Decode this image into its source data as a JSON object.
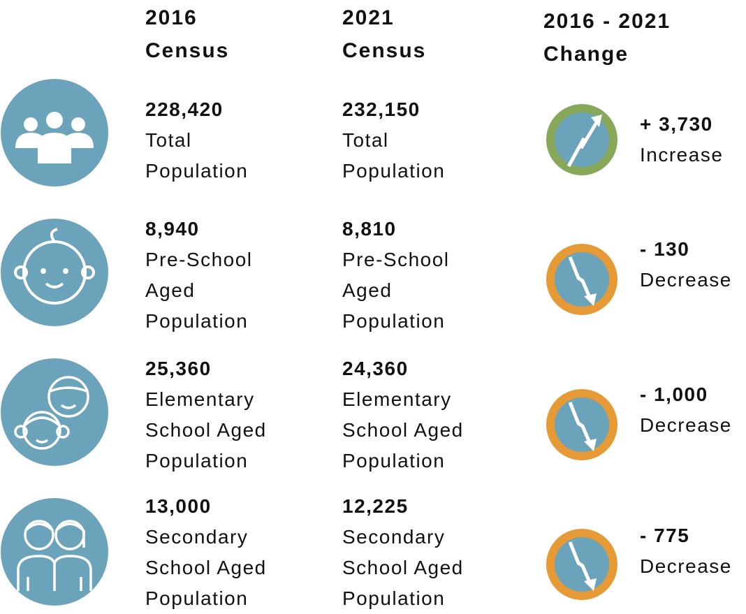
{
  "header": {
    "col1": [
      "2016",
      "Census"
    ],
    "col2": [
      "2021",
      "Census"
    ],
    "col3": [
      "2016 - 2021",
      "Change"
    ]
  },
  "rows": [
    {
      "value_2016": "228,420",
      "value_2021": "232,150",
      "label": [
        "Total",
        "Population"
      ],
      "change": "+ 3,730",
      "change_label": "Increase",
      "ring_color": "#87a858"
    },
    {
      "value_2016": "8,940",
      "value_2021": "8,810",
      "label": [
        "Pre-School",
        "Aged",
        "Population"
      ],
      "change": "- 130",
      "change_label": "Decrease",
      "ring_color": "#e69a35"
    },
    {
      "value_2016": "25,360",
      "value_2021": "24,360",
      "label": [
        "Elementary",
        "School Aged",
        "Population"
      ],
      "change": "- 1,000",
      "change_label": "Decrease",
      "ring_color": "#e69a35"
    },
    {
      "value_2016": "13,000",
      "value_2021": "12,225",
      "label": [
        "Secondary",
        "School Aged",
        "Population"
      ],
      "change": "- 775",
      "change_label": "Decrease",
      "ring_color": "#e69a35"
    }
  ]
}
